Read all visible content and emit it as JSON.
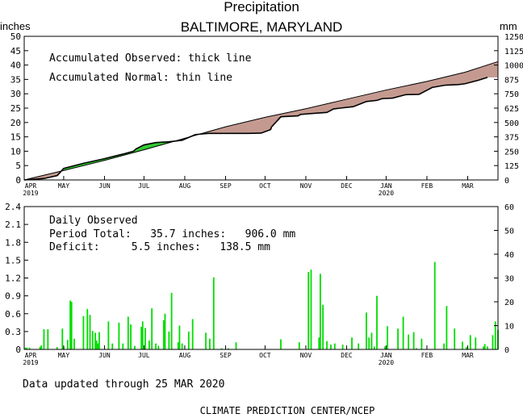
{
  "title": "Precipitation",
  "subtitle": "BALTIMORE, MARYLAND",
  "units_left": "inches",
  "units_right": "mm",
  "colors": {
    "background": "#ffffff",
    "deficit_fill": "#c49a90",
    "surplus_fill": "#33cc33",
    "daily_bars": "#00dd00",
    "lines": "#000000"
  },
  "footer": {
    "updated": "Data updated through 25 MAR 2020",
    "credit": "CLIMATE PREDICTION CENTER/NCEP"
  },
  "chart_data": [
    {
      "type": "line",
      "notes": [
        "Accumulated Observed: thick line",
        "Accumulated Normal: thin line"
      ],
      "x_ticks": [
        "APR",
        "MAY",
        "JUN",
        "JUL",
        "AUG",
        "SEP",
        "OCT",
        "NOV",
        "DEC",
        "JAN",
        "FEB",
        "MAR"
      ],
      "x_year_labels": [
        {
          "month": "APR",
          "year": "2019"
        },
        {
          "month": "JAN",
          "year": "2020"
        }
      ],
      "ylim": [
        0,
        50
      ],
      "y_ticks": [
        0,
        5,
        10,
        15,
        20,
        25,
        30,
        35,
        40,
        45,
        50
      ],
      "ylim_right": [
        0,
        1250
      ],
      "y_ticks_right": [
        0,
        125,
        250,
        375,
        500,
        625,
        750,
        875,
        1000,
        1125,
        1250
      ],
      "series": [
        {
          "name": "Accumulated Observed",
          "x_day": [
            0,
            15,
            25,
            30,
            45,
            60,
            75,
            83,
            85,
            91,
            100,
            110,
            120,
            130,
            140,
            150,
            160,
            170,
            180,
            187,
            188,
            195,
            208,
            210,
            215,
            230,
            235,
            240,
            250,
            260,
            268,
            272,
            280,
            290,
            300,
            310,
            320,
            330,
            335,
            345,
            352
          ],
          "y": [
            0,
            0.5,
            1.5,
            4.0,
            5.8,
            7.3,
            9.0,
            10.0,
            10.8,
            12.2,
            13.0,
            13.3,
            13.8,
            15.8,
            16.2,
            16.2,
            16.2,
            16.2,
            16.3,
            17.5,
            18.5,
            22.0,
            22.3,
            22.8,
            23.0,
            23.5,
            24.7,
            25.0,
            25.5,
            27.3,
            27.7,
            28.3,
            28.5,
            29.7,
            29.8,
            32.2,
            33.0,
            33.2,
            33.5,
            34.7,
            35.7
          ]
        },
        {
          "name": "Accumulated Normal",
          "x_day": [
            0,
            30,
            61,
            91,
            122,
            153,
            183,
            214,
            244,
            275,
            306,
            335,
            360
          ],
          "y": [
            0,
            3.3,
            6.8,
            10.5,
            14.5,
            18.5,
            21.8,
            24.8,
            28.0,
            31.3,
            34.3,
            37.5,
            41.2
          ]
        }
      ]
    },
    {
      "type": "bar",
      "notes": [
        "Daily Observed"
      ],
      "stats": {
        "period_total": "Period Total:   35.7 inches:   906.0 mm",
        "deficit": "Deficit:     5.5 inches:   138.5 mm"
      },
      "x_ticks": [
        "APR",
        "MAY",
        "JUN",
        "JUL",
        "AUG",
        "SEP",
        "OCT",
        "NOV",
        "DEC",
        "JAN",
        "FEB",
        "MAR"
      ],
      "x_year_labels": [
        {
          "month": "APR",
          "year": "2019"
        },
        {
          "month": "JAN",
          "year": "2020"
        }
      ],
      "ylim": [
        0,
        2.4
      ],
      "y_ticks": [
        "0",
        "0.3",
        "0.6",
        "0.9",
        "1.2",
        "1.5",
        "1.8",
        "2.1",
        "2.4"
      ],
      "ylim_right": [
        0,
        60
      ],
      "y_ticks_right": [
        0,
        10,
        20,
        30,
        40,
        50,
        60
      ],
      "x_day": [
        1,
        2,
        4,
        12,
        13,
        15,
        18,
        25,
        29,
        30,
        33,
        35,
        36,
        38,
        45,
        48,
        50,
        52,
        54,
        55,
        56,
        57,
        64,
        67,
        72,
        75,
        79,
        81,
        84,
        89,
        90,
        92,
        95,
        97,
        100,
        102,
        106,
        107,
        110,
        112,
        117,
        118,
        120,
        125,
        128,
        138,
        141,
        144,
        150,
        155,
        161,
        195,
        209,
        216,
        218,
        224,
        225,
        227,
        230,
        233,
        236,
        242,
        249,
        254,
        260,
        262,
        264,
        266,
        268,
        274,
        276,
        284,
        288,
        292,
        296,
        298,
        302,
        312,
        319,
        321,
        327,
        333,
        336,
        339,
        343,
        349,
        350,
        352,
        356,
        358,
        360
      ],
      "values": [
        0.03,
        0.03,
        0.03,
        0.04,
        0.07,
        0.34,
        0.34,
        0.04,
        0.35,
        0.04,
        0.16,
        0.82,
        0.8,
        0.18,
        0.56,
        0.68,
        0.58,
        0.31,
        0.28,
        0.15,
        0.1,
        0.29,
        0.47,
        0.1,
        0.45,
        0.1,
        0.55,
        0.42,
        0.06,
        0.38,
        0.47,
        0.36,
        0.15,
        0.69,
        0.1,
        0.06,
        0.49,
        0.6,
        0.3,
        0.95,
        0.12,
        0.4,
        0.1,
        0.3,
        0.51,
        0.28,
        0.18,
        1.21,
        0.02,
        0.02,
        0.12,
        0.17,
        0.12,
        1.3,
        1.34,
        0.2,
        1.27,
        0.75,
        0.14,
        0.08,
        0.1,
        0.08,
        0.2,
        0.1,
        0.62,
        0.2,
        0.28,
        0.05,
        0.9,
        0.05,
        0.39,
        0.35,
        0.55,
        0.25,
        0.29,
        0.02,
        0.18,
        1.47,
        0.1,
        0.73,
        0.35,
        0.13,
        0.04,
        0.24,
        0.2,
        0.05,
        0.09,
        0.05,
        0.24,
        0.47,
        0.33
      ]
    }
  ]
}
